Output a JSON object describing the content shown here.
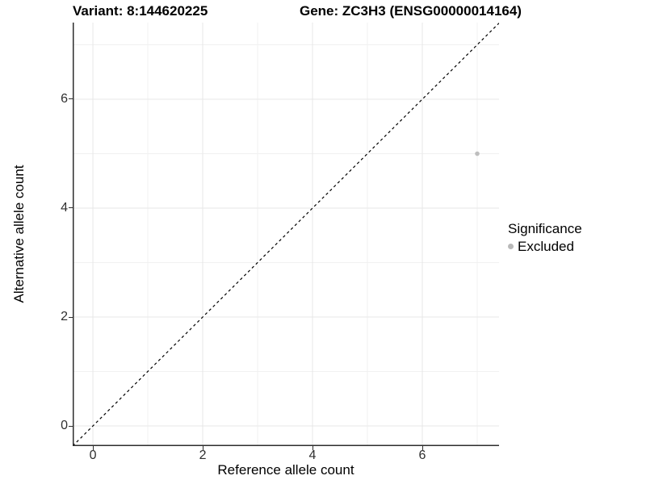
{
  "titles": {
    "variant": "Variant: 8:144620225",
    "gene": "Gene: ZC3H3 (ENSG00000014164)"
  },
  "legend": {
    "title": "Significance",
    "items": [
      {
        "label": "Excluded",
        "color": "#b9b9b9"
      }
    ]
  },
  "chart_data": {
    "type": "scatter",
    "title": "Variant: 8:144620225 — Gene: ZC3H3 (ENSG00000014164)",
    "xlabel": "Reference allele count",
    "ylabel": "Alternative allele count",
    "xlim": [
      -0.368,
      7.397
    ],
    "ylim": [
      -0.37,
      7.407
    ],
    "x_ticks": [
      0,
      2,
      4,
      6
    ],
    "y_ticks": [
      0,
      2,
      4,
      6
    ],
    "grid": {
      "major": [
        0,
        2,
        4,
        6
      ],
      "minor": [
        1,
        3,
        5,
        7
      ],
      "on": true
    },
    "series": [
      {
        "name": "Excluded",
        "color": "#bebebe",
        "points": [
          {
            "x": 7,
            "y": 5
          }
        ]
      }
    ],
    "reference_line": {
      "type": "identity",
      "style": "dashed",
      "color": "#000000"
    },
    "legend_position": "right"
  },
  "style_colors": {
    "grid_major": "#e7e7e7",
    "grid_minor": "#f1f1f1",
    "axis_line": "#2d2d2d",
    "tick_label": "#2f2f2f"
  }
}
